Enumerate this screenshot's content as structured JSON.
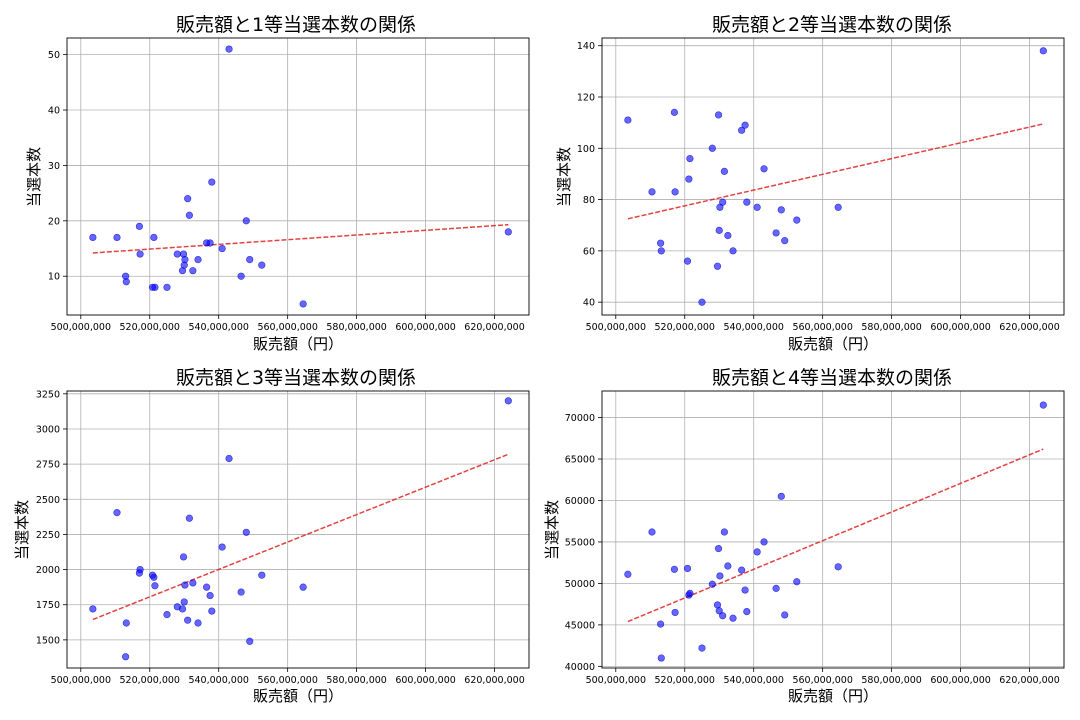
{
  "colors": {
    "points": "#0000ff",
    "trend": "#e02020",
    "grid": "#b0b0b0"
  },
  "chart_data": [
    {
      "type": "scatter",
      "title": "販売額と1等当選本数の関係",
      "xlabel": "販売額（円）",
      "ylabel": "当選本数",
      "xlim": [
        496000000,
        630000000
      ],
      "ylim": [
        3,
        53
      ],
      "xticks": [
        500000000,
        520000000,
        540000000,
        560000000,
        580000000,
        600000000,
        620000000
      ],
      "xtick_labels": [
        "500,000,000",
        "520,000,000",
        "540,000,000",
        "560,000,000",
        "580,000,000",
        "600,000,000",
        "620,000,000"
      ],
      "yticks": [
        10,
        20,
        30,
        40,
        50
      ],
      "ytick_labels": [
        "10",
        "20",
        "30",
        "40",
        "50"
      ],
      "grid": true,
      "trendline": {
        "x": [
          503500000,
          624000000
        ],
        "y": [
          14.2,
          19.3
        ]
      },
      "points": [
        {
          "x": 503500000,
          "y": 17
        },
        {
          "x": 510500000,
          "y": 17
        },
        {
          "x": 513000000,
          "y": 10
        },
        {
          "x": 513200000,
          "y": 9
        },
        {
          "x": 517000000,
          "y": 19
        },
        {
          "x": 517200000,
          "y": 14
        },
        {
          "x": 520800000,
          "y": 8
        },
        {
          "x": 521200000,
          "y": 17
        },
        {
          "x": 521500000,
          "y": 8
        },
        {
          "x": 525000000,
          "y": 8
        },
        {
          "x": 528000000,
          "y": 14
        },
        {
          "x": 529500000,
          "y": 11
        },
        {
          "x": 529800000,
          "y": 14
        },
        {
          "x": 530000000,
          "y": 12
        },
        {
          "x": 530200000,
          "y": 13
        },
        {
          "x": 531000000,
          "y": 24
        },
        {
          "x": 531500000,
          "y": 21
        },
        {
          "x": 532500000,
          "y": 11
        },
        {
          "x": 534000000,
          "y": 13
        },
        {
          "x": 536500000,
          "y": 16
        },
        {
          "x": 537500000,
          "y": 16
        },
        {
          "x": 538000000,
          "y": 27
        },
        {
          "x": 541000000,
          "y": 15
        },
        {
          "x": 543000000,
          "y": 51
        },
        {
          "x": 546500000,
          "y": 10
        },
        {
          "x": 548000000,
          "y": 20
        },
        {
          "x": 549000000,
          "y": 13
        },
        {
          "x": 552500000,
          "y": 12
        },
        {
          "x": 564500000,
          "y": 5
        },
        {
          "x": 624000000,
          "y": 18
        }
      ]
    },
    {
      "type": "scatter",
      "title": "販売額と2等当選本数の関係",
      "xlabel": "販売額（円）",
      "ylabel": "当選本数",
      "xlim": [
        496000000,
        630000000
      ],
      "ylim": [
        35,
        143
      ],
      "xticks": [
        500000000,
        520000000,
        540000000,
        560000000,
        580000000,
        600000000,
        620000000
      ],
      "xtick_labels": [
        "500,000,000",
        "520,000,000",
        "540,000,000",
        "560,000,000",
        "580,000,000",
        "600,000,000",
        "620,000,000"
      ],
      "yticks": [
        40,
        60,
        80,
        100,
        120,
        140
      ],
      "ytick_labels": [
        "40",
        "60",
        "80",
        "100",
        "120",
        "140"
      ],
      "grid": true,
      "trendline": {
        "x": [
          503500000,
          624000000
        ],
        "y": [
          72.5,
          109.5
        ]
      },
      "points": [
        {
          "x": 503500000,
          "y": 111
        },
        {
          "x": 510500000,
          "y": 83
        },
        {
          "x": 513000000,
          "y": 63
        },
        {
          "x": 513200000,
          "y": 60
        },
        {
          "x": 517000000,
          "y": 114
        },
        {
          "x": 517200000,
          "y": 83
        },
        {
          "x": 520800000,
          "y": 56
        },
        {
          "x": 521200000,
          "y": 88
        },
        {
          "x": 521500000,
          "y": 96
        },
        {
          "x": 525000000,
          "y": 40
        },
        {
          "x": 528000000,
          "y": 100
        },
        {
          "x": 529500000,
          "y": 54
        },
        {
          "x": 529800000,
          "y": 113
        },
        {
          "x": 530000000,
          "y": 68
        },
        {
          "x": 530200000,
          "y": 77
        },
        {
          "x": 531000000,
          "y": 79
        },
        {
          "x": 531500000,
          "y": 91
        },
        {
          "x": 532500000,
          "y": 66
        },
        {
          "x": 534000000,
          "y": 60
        },
        {
          "x": 536500000,
          "y": 107
        },
        {
          "x": 537500000,
          "y": 109
        },
        {
          "x": 538000000,
          "y": 79
        },
        {
          "x": 541000000,
          "y": 77
        },
        {
          "x": 543000000,
          "y": 92
        },
        {
          "x": 546500000,
          "y": 67
        },
        {
          "x": 548000000,
          "y": 76
        },
        {
          "x": 549000000,
          "y": 64
        },
        {
          "x": 552500000,
          "y": 72
        },
        {
          "x": 564500000,
          "y": 77
        },
        {
          "x": 624000000,
          "y": 138
        }
      ]
    },
    {
      "type": "scatter",
      "title": "販売額と3等当選本数の関係",
      "xlabel": "販売額（円）",
      "ylabel": "当選本数",
      "xlim": [
        496000000,
        630000000
      ],
      "ylim": [
        1300,
        3270
      ],
      "xticks": [
        500000000,
        520000000,
        540000000,
        560000000,
        580000000,
        600000000,
        620000000
      ],
      "xtick_labels": [
        "500,000,000",
        "520,000,000",
        "540,000,000",
        "560,000,000",
        "580,000,000",
        "600,000,000",
        "620,000,000"
      ],
      "yticks": [
        1500,
        1750,
        2000,
        2250,
        2500,
        2750,
        3000,
        3250
      ],
      "ytick_labels": [
        "1500",
        "1750",
        "2000",
        "2250",
        "2500",
        "2750",
        "3000",
        "3250"
      ],
      "grid": true,
      "trendline": {
        "x": [
          503500000,
          624000000
        ],
        "y": [
          1645,
          2820
        ]
      },
      "points": [
        {
          "x": 503500000,
          "y": 1720
        },
        {
          "x": 510500000,
          "y": 2405
        },
        {
          "x": 513000000,
          "y": 1380
        },
        {
          "x": 513200000,
          "y": 1620
        },
        {
          "x": 517000000,
          "y": 1975
        },
        {
          "x": 517200000,
          "y": 2000
        },
        {
          "x": 520800000,
          "y": 1960
        },
        {
          "x": 521200000,
          "y": 1945
        },
        {
          "x": 521500000,
          "y": 1885
        },
        {
          "x": 525000000,
          "y": 1680
        },
        {
          "x": 528000000,
          "y": 1735
        },
        {
          "x": 529500000,
          "y": 1720
        },
        {
          "x": 529800000,
          "y": 2090
        },
        {
          "x": 530000000,
          "y": 1770
        },
        {
          "x": 530200000,
          "y": 1890
        },
        {
          "x": 531000000,
          "y": 1640
        },
        {
          "x": 531500000,
          "y": 2365
        },
        {
          "x": 532500000,
          "y": 1905
        },
        {
          "x": 534000000,
          "y": 1620
        },
        {
          "x": 536500000,
          "y": 1875
        },
        {
          "x": 537500000,
          "y": 1815
        },
        {
          "x": 538000000,
          "y": 1705
        },
        {
          "x": 541000000,
          "y": 2160
        },
        {
          "x": 543000000,
          "y": 2790
        },
        {
          "x": 546500000,
          "y": 1840
        },
        {
          "x": 548000000,
          "y": 2265
        },
        {
          "x": 549000000,
          "y": 1490
        },
        {
          "x": 552500000,
          "y": 1960
        },
        {
          "x": 564500000,
          "y": 1875
        },
        {
          "x": 624000000,
          "y": 3200
        }
      ]
    },
    {
      "type": "scatter",
      "title": "販売額と4等当選本数の関係",
      "xlabel": "販売額（円）",
      "ylabel": "当選本数",
      "xlim": [
        496000000,
        630000000
      ],
      "ylim": [
        39800,
        73200
      ],
      "xticks": [
        500000000,
        520000000,
        540000000,
        560000000,
        580000000,
        600000000,
        620000000
      ],
      "xtick_labels": [
        "500,000,000",
        "520,000,000",
        "540,000,000",
        "560,000,000",
        "580,000,000",
        "600,000,000",
        "620,000,000"
      ],
      "yticks": [
        40000,
        45000,
        50000,
        55000,
        60000,
        65000,
        70000
      ],
      "ytick_labels": [
        "40000",
        "45000",
        "50000",
        "55000",
        "60000",
        "65000",
        "70000"
      ],
      "grid": true,
      "trendline": {
        "x": [
          503500000,
          624000000
        ],
        "y": [
          45400,
          66200
        ]
      },
      "points": [
        {
          "x": 503500000,
          "y": 51100
        },
        {
          "x": 510500000,
          "y": 56200
        },
        {
          "x": 513000000,
          "y": 45100
        },
        {
          "x": 513200000,
          "y": 41000
        },
        {
          "x": 517000000,
          "y": 51700
        },
        {
          "x": 517200000,
          "y": 46500
        },
        {
          "x": 520800000,
          "y": 51800
        },
        {
          "x": 521200000,
          "y": 48600
        },
        {
          "x": 521500000,
          "y": 48800
        },
        {
          "x": 525000000,
          "y": 42200
        },
        {
          "x": 528000000,
          "y": 49900
        },
        {
          "x": 529500000,
          "y": 47400
        },
        {
          "x": 529800000,
          "y": 54200
        },
        {
          "x": 530000000,
          "y": 46700
        },
        {
          "x": 530200000,
          "y": 50900
        },
        {
          "x": 531000000,
          "y": 46100
        },
        {
          "x": 531500000,
          "y": 56200
        },
        {
          "x": 532500000,
          "y": 52100
        },
        {
          "x": 534000000,
          "y": 45800
        },
        {
          "x": 536500000,
          "y": 51600
        },
        {
          "x": 537500000,
          "y": 49200
        },
        {
          "x": 538000000,
          "y": 46600
        },
        {
          "x": 541000000,
          "y": 53800
        },
        {
          "x": 543000000,
          "y": 55000
        },
        {
          "x": 546500000,
          "y": 49400
        },
        {
          "x": 548000000,
          "y": 60500
        },
        {
          "x": 549000000,
          "y": 46200
        },
        {
          "x": 552500000,
          "y": 50200
        },
        {
          "x": 564500000,
          "y": 52000
        },
        {
          "x": 624000000,
          "y": 71500
        }
      ]
    }
  ]
}
